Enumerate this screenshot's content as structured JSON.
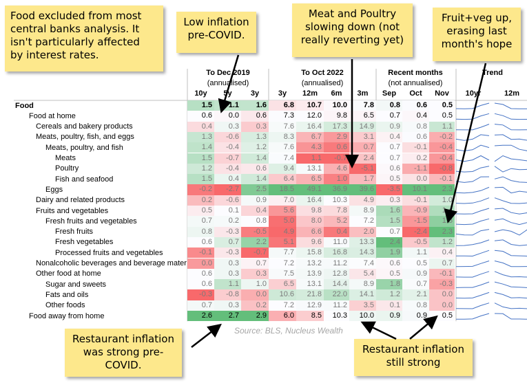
{
  "notes": {
    "food_excluded": [
      "Food excluded from most",
      "central banks analysis. It",
      "isn't particularly affected",
      "by interest rates."
    ],
    "low_inflation": [
      "Low inflation",
      "pre-COVID."
    ],
    "meat_poultry": [
      "Meat and Poultry",
      "slowing down (not",
      "really reverting yet)"
    ],
    "fruit_veg": [
      "Fruit+veg up,",
      "erasing last",
      "month's hope"
    ],
    "restaurant_pre": [
      "Restaurant inflation",
      "was strong pre-",
      "COVID."
    ],
    "restaurant_still": [
      "Restaurant inflation",
      "still strong"
    ]
  },
  "colors": {
    "red": "#f8696b",
    "white": "#fcfcff",
    "green": "#63be7b",
    "note": "#fde88c",
    "trend": "#4472c4"
  },
  "chart_data": {
    "type": "table",
    "source": "Source: BLS, Nucleus Wealth",
    "groups": [
      {
        "title": "To Dec 2019",
        "subtitle": "(annualised)"
      },
      {
        "title": "To Oct 2022",
        "subtitle": "(annualised)"
      },
      {
        "title": "Recent months",
        "subtitle": "(not annualised)"
      },
      {
        "title": "Trend",
        "subtitle": ""
      }
    ],
    "columns": [
      "10y",
      "5y",
      "3y",
      "3y",
      "12m",
      "6m",
      "3m",
      "Sep",
      "Oct",
      "Nov",
      "10yr",
      "12m"
    ],
    "rows": [
      {
        "label": "Food",
        "indent": 0,
        "bold": true,
        "values": [
          1.5,
          1.1,
          1.6,
          6.8,
          10.7,
          10.0,
          7.8,
          0.8,
          0.6,
          0.5
        ]
      },
      {
        "label": "Food at home",
        "indent": 1,
        "bold": false,
        "values": [
          0.6,
          0.0,
          0.6,
          7.3,
          12.0,
          9.8,
          6.5,
          0.7,
          0.4,
          0.5
        ]
      },
      {
        "label": "Cereals and bakery products",
        "indent": 2,
        "bold": false,
        "values": [
          0.4,
          0.3,
          0.3,
          7.6,
          16.4,
          17.3,
          14.9,
          0.9,
          0.8,
          1.1
        ]
      },
      {
        "label": "Meats, poultry, fish, and eggs",
        "indent": 2,
        "bold": false,
        "values": [
          1.3,
          -0.6,
          1.3,
          8.3,
          6.7,
          2.9,
          3.1,
          0.4,
          0.6,
          -0.2
        ]
      },
      {
        "label": "Meats, poultry, and fish",
        "indent": 3,
        "bold": false,
        "values": [
          1.4,
          -0.4,
          1.2,
          7.6,
          4.3,
          0.6,
          0.7,
          0.7,
          -0.1,
          -0.4
        ]
      },
      {
        "label": "Meats",
        "indent": 4,
        "bold": false,
        "values": [
          1.5,
          -0.7,
          1.4,
          7.4,
          1.1,
          -0.7,
          2.4,
          0.7,
          0.2,
          -0.4
        ]
      },
      {
        "label": "Poultry",
        "indent": 4,
        "bold": false,
        "values": [
          1.2,
          -0.4,
          0.6,
          9.4,
          13.1,
          4.6,
          -5.1,
          0.6,
          -1.1,
          -0.8
        ]
      },
      {
        "label": "Fish and seafood",
        "indent": 4,
        "bold": false,
        "values": [
          1.5,
          0.4,
          1.4,
          6.4,
          6.5,
          1.0,
          1.7,
          0.5,
          0.0,
          -0.1
        ]
      },
      {
        "label": "Eggs",
        "indent": 3,
        "bold": false,
        "values": [
          -0.2,
          -2.7,
          2.5,
          18.5,
          49.1,
          36.9,
          39.6,
          -3.5,
          10.1,
          2.3
        ]
      },
      {
        "label": "Dairy and related products",
        "indent": 2,
        "bold": false,
        "values": [
          0.2,
          -0.6,
          0.9,
          7.0,
          16.4,
          10.3,
          4.9,
          0.3,
          -0.1,
          1.0
        ]
      },
      {
        "label": "Fruits and vegetables",
        "indent": 2,
        "bold": false,
        "values": [
          0.5,
          0.1,
          0.4,
          5.6,
          9.8,
          7.8,
          8.9,
          1.6,
          -0.9,
          1.4
        ]
      },
      {
        "label": "Fresh fruits and vegetables",
        "indent": 3,
        "bold": false,
        "values": [
          0.7,
          0.2,
          0.8,
          5.0,
          8.0,
          5.2,
          7.2,
          1.5,
          -1.5,
          1.8
        ]
      },
      {
        "label": "Fresh fruits",
        "indent": 4,
        "bold": false,
        "values": [
          0.8,
          -0.3,
          -0.5,
          4.9,
          6.6,
          0.4,
          2.0,
          0.7,
          -2.4,
          2.3
        ]
      },
      {
        "label": "Fresh vegetables",
        "indent": 4,
        "bold": false,
        "values": [
          0.6,
          0.7,
          2.2,
          5.1,
          9.6,
          11.0,
          13.3,
          2.4,
          -0.5,
          1.2
        ]
      },
      {
        "label": "Processed fruits and vegetables",
        "indent": 4,
        "bold": false,
        "values": [
          -0.1,
          -0.3,
          -0.7,
          7.7,
          15.8,
          16.8,
          14.3,
          1.9,
          1.1,
          0.4
        ]
      },
      {
        "label": "Nonalcoholic beverages and beverage mater",
        "indent": 2,
        "bold": false,
        "values": [
          0.0,
          0.3,
          0.7,
          7.2,
          13.2,
          11.2,
          7.4,
          0.6,
          0.5,
          0.7
        ]
      },
      {
        "label": "Other food at home",
        "indent": 2,
        "bold": false,
        "values": [
          0.6,
          0.3,
          0.3,
          7.5,
          13.9,
          12.8,
          5.4,
          0.5,
          0.9,
          -0.1
        ]
      },
      {
        "label": "Sugar and sweets",
        "indent": 3,
        "bold": false,
        "values": [
          0.6,
          1.1,
          1.0,
          6.5,
          13.1,
          14.4,
          8.9,
          1.8,
          0.7,
          -0.3
        ]
      },
      {
        "label": "Fats and oils",
        "indent": 3,
        "bold": false,
        "values": [
          -0.3,
          -0.8,
          0.0,
          10.6,
          21.8,
          22.0,
          14.1,
          1.2,
          2.1,
          0.0
        ]
      },
      {
        "label": "Other foods",
        "indent": 3,
        "bold": false,
        "values": [
          0.7,
          0.3,
          0.2,
          7.2,
          12.9,
          11.2,
          3.5,
          0.1,
          0.8,
          0.0
        ]
      },
      {
        "label": "Food away from home",
        "indent": 1,
        "bold": false,
        "values": [
          2.6,
          2.7,
          2.9,
          6.0,
          8.5,
          10.3,
          10.0,
          0.9,
          0.9,
          0.5
        ]
      }
    ]
  }
}
